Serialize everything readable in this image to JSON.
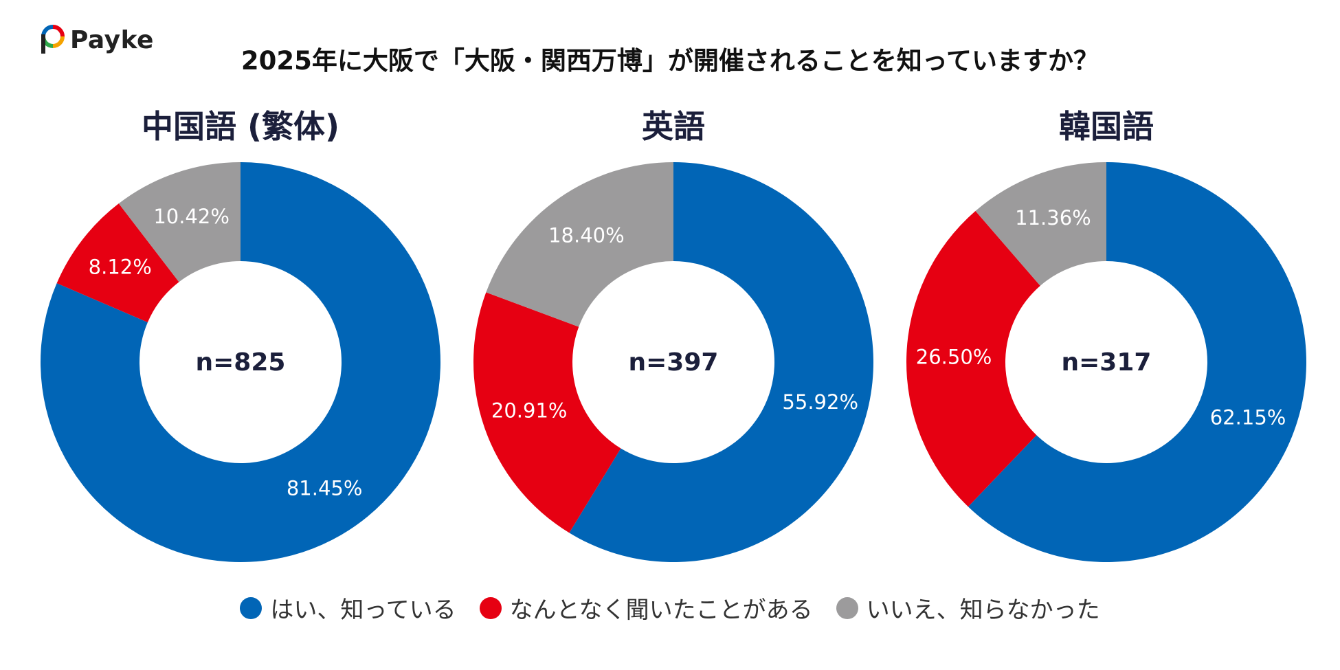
{
  "brand": {
    "name": "Payke"
  },
  "title": "2025年に大阪で「大阪・関西万博」が開催されることを知っていますか？",
  "colors": {
    "yes": "#0165b6",
    "heard": "#e60012",
    "no": "#9c9b9c",
    "label": "#ffffff",
    "center_text": "#1b1f3b"
  },
  "legend": [
    {
      "label": "はい、知っている",
      "color": "#0165b6"
    },
    {
      "label": "なんとなく聞いたことがある",
      "color": "#e60012"
    },
    {
      "label": "いいえ、知らなかった",
      "color": "#9c9b9c"
    }
  ],
  "chart_data": [
    {
      "type": "pie",
      "title": "中国語 (繁体)",
      "center_label": "n=825",
      "categories": [
        "はい、知っている",
        "なんとなく聞いたことがある",
        "いいえ、知らなかった"
      ],
      "values": [
        81.45,
        8.12,
        10.42
      ],
      "value_labels": [
        "81.45%",
        "8.12%",
        "10.42%"
      ]
    },
    {
      "type": "pie",
      "title": "英語",
      "center_label": "n=397",
      "categories": [
        "はい、知っている",
        "なんとなく聞いたことがある",
        "いいえ、知らなかった"
      ],
      "values": [
        55.92,
        20.91,
        18.4
      ],
      "value_labels": [
        "55.92%",
        "20.91%",
        "18.40%"
      ]
    },
    {
      "type": "pie",
      "title": "韓国語",
      "center_label": "n=317",
      "categories": [
        "はい、知っている",
        "なんとなく聞いたことがある",
        "いいえ、知らなかった"
      ],
      "values": [
        62.15,
        26.5,
        11.36
      ],
      "value_labels": [
        "62.15%",
        "26.50%",
        "11.36%"
      ]
    }
  ]
}
